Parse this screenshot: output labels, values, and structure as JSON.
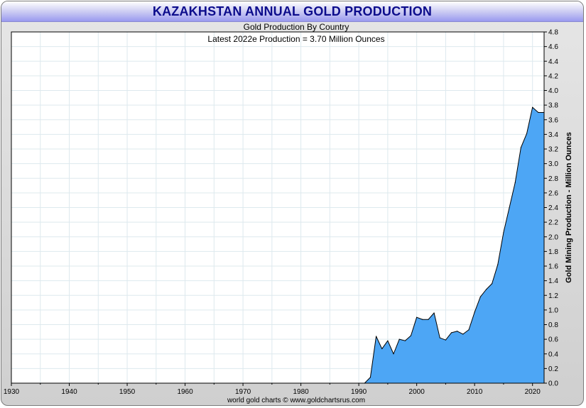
{
  "chart_data": {
    "type": "area",
    "title": "KAZAKHSTAN ANNUAL GOLD PRODUCTION",
    "subtitle": "Gold Production By Country",
    "annotation": "Latest 2022e Production = 3.70 Million Ounces",
    "ylabel": "Gold Mining Production - Million Ounces",
    "xlabel": "",
    "footer": "world gold charts © www.goldchartsrus.com",
    "xlim": [
      1930,
      2022
    ],
    "ylim": [
      0,
      4.8
    ],
    "x_ticks": [
      "1930",
      "1940",
      "1950",
      "1960",
      "1970",
      "1980",
      "1990",
      "2000",
      "2010",
      "2020"
    ],
    "y_ticks": [
      "4.8",
      "4.6",
      "4.4",
      "4.2",
      "4.0",
      "3.8",
      "3.6",
      "3.4",
      "3.2",
      "3.0",
      "2.8",
      "2.6",
      "2.4",
      "2.2",
      "2.0",
      "1.8",
      "1.6",
      "1.4",
      "1.2",
      "1.0",
      "0.8",
      "0.6",
      "0.4",
      "0.2",
      "0.0"
    ],
    "grid": true,
    "fill_color": "#4da6f5",
    "line_color": "#000000",
    "series": [
      {
        "x": [
          1991,
          1992,
          1993,
          1994,
          1995,
          1996,
          1997,
          1998,
          1999,
          2000,
          2001,
          2002,
          2003,
          2004,
          2005,
          2006,
          2007,
          2008,
          2009,
          2010,
          2011,
          2012,
          2013,
          2014,
          2015,
          2016,
          2017,
          2018,
          2019,
          2020,
          2021,
          2022
        ],
        "values": [
          0.0,
          0.08,
          0.64,
          0.47,
          0.58,
          0.4,
          0.6,
          0.58,
          0.65,
          0.9,
          0.87,
          0.87,
          0.96,
          0.62,
          0.59,
          0.69,
          0.71,
          0.67,
          0.73,
          0.97,
          1.18,
          1.28,
          1.36,
          1.62,
          2.06,
          2.4,
          2.74,
          3.22,
          3.41,
          3.77,
          3.7,
          3.7
        ]
      }
    ]
  }
}
